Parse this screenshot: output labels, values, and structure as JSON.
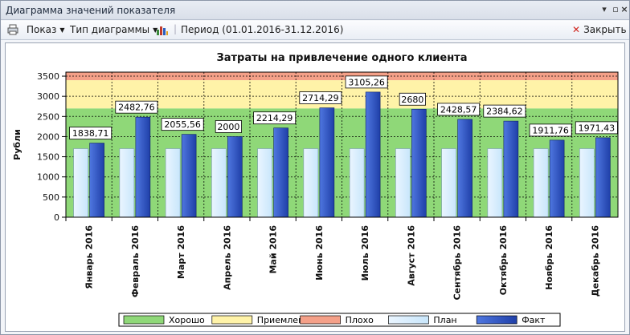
{
  "window": {
    "title": "Диаграмма значений показателя"
  },
  "titlebar_icons": {
    "menu": "dropdown-icon",
    "restore": "restore-icon",
    "close": "close-icon"
  },
  "toolbar": {
    "show_label": "Показ",
    "chart_type_label": "Тип диаграммы",
    "period_label": "Период (01.01.2016-31.12.2016)",
    "close_label": "Закрыть"
  },
  "colors": {
    "zone_good": "#8fd878",
    "zone_ok": "#fff3a8",
    "zone_bad": "#f4a088",
    "plan": "#c8e6fb",
    "fact": "#1f3fa8"
  },
  "chart_data": {
    "type": "bar",
    "title": "Затраты на привлечение одного клиента",
    "ylabel": "Рубли",
    "xlabel": "",
    "ylim": [
      0,
      3600
    ],
    "yticks": [
      0,
      500,
      1000,
      1500,
      2000,
      2500,
      3000,
      3500
    ],
    "grid": true,
    "categories": [
      "Январь 2016",
      "Февраль 2016",
      "Март 2016",
      "Апрель 2016",
      "Май 2016",
      "Июнь 2016",
      "Июль 2016",
      "Август 2016",
      "Сентябрь 2016",
      "Октябрь 2016",
      "Ноябрь 2016",
      "Декабрь 2016"
    ],
    "series": [
      {
        "name": "План",
        "values": [
          1700,
          1700,
          1700,
          1700,
          1700,
          1700,
          1700,
          1700,
          1700,
          1700,
          1700,
          1700
        ]
      },
      {
        "name": "Факт",
        "values": [
          1838.71,
          2482.76,
          2055.56,
          2000,
          2214.29,
          2714.29,
          3105.26,
          2680,
          2428.57,
          2384.62,
          1911.76,
          1971.43
        ]
      }
    ],
    "data_labels": [
      "1838,71",
      "2482,76",
      "2055,56",
      "2000",
      "2214,29",
      "2714,29",
      "3105,26",
      "2680",
      "2428,57",
      "2384,62",
      "1911,76",
      "1971,43"
    ],
    "zones": [
      {
        "name": "Хорошо",
        "from": 0,
        "to": 2700
      },
      {
        "name": "Приемлемо",
        "from": 2700,
        "to": 3400
      },
      {
        "name": "Плохо",
        "from": 3400,
        "to": 3600
      }
    ],
    "legend": [
      "Хорошо",
      "Приемлемо",
      "Плохо",
      "План",
      "Факт"
    ],
    "legend_position": "bottom"
  }
}
